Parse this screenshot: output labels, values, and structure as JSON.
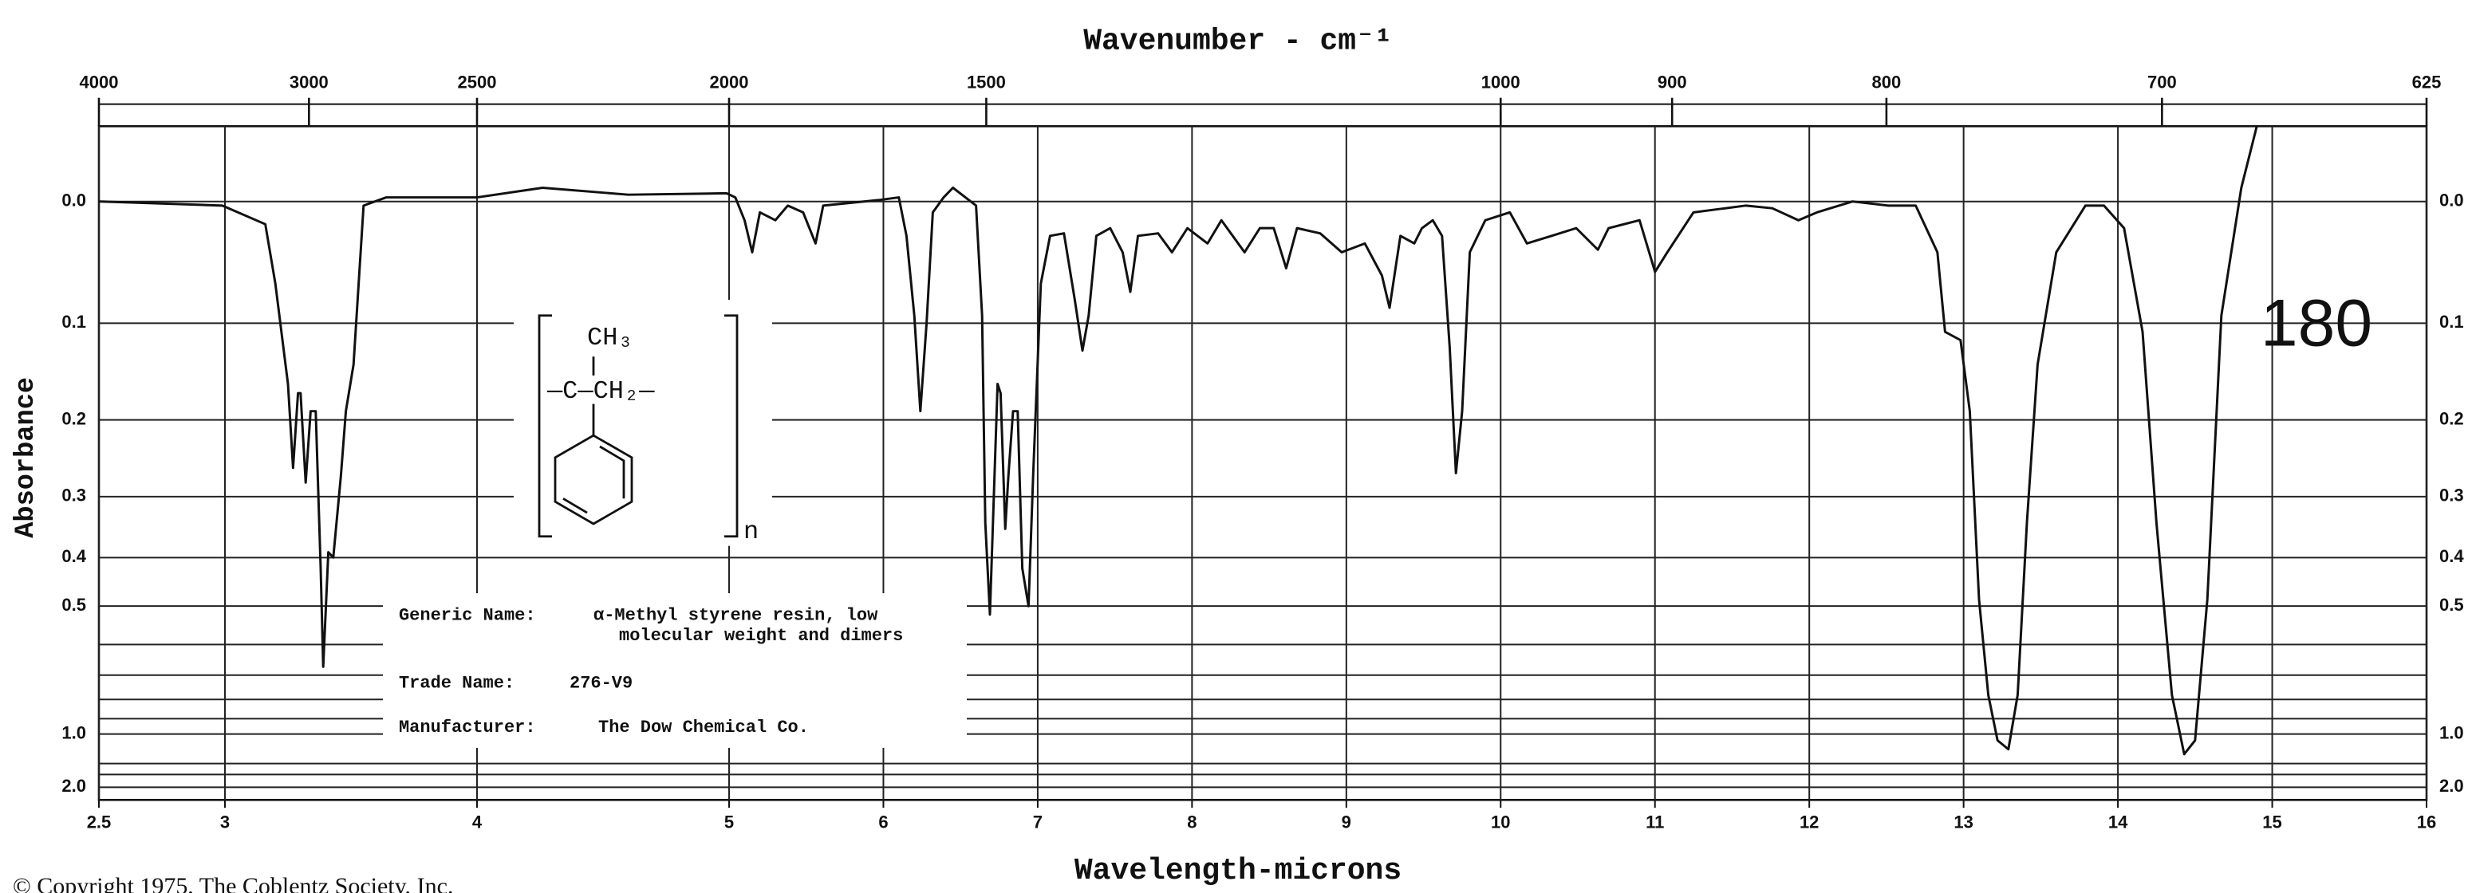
{
  "chart_data": {
    "type": "line",
    "title": "Wavenumber - cm⁻¹",
    "xlabel": "Wavelength-microns",
    "ylabel": "Absorbance",
    "annotation": "180",
    "copyright": "© Copyright 1975, The Coblentz Society, Inc.",
    "structure": {
      "top": "CH₃",
      "chain": "—C—CH₂—",
      "repeat": "n"
    },
    "info": {
      "generic_label": "Generic Name:",
      "generic_1": "α-Methyl styrene resin, low",
      "generic_2": "molecular weight and dimers",
      "trade_label": "Trade Name:",
      "trade": "276-V9",
      "maker_label": "Manufacturer:",
      "maker": "The Dow Chemical Co."
    },
    "color": "#111111",
    "xlim": [
      2.5,
      16
    ],
    "x_scale_break": 5,
    "xticks": [
      2.5,
      3,
      4,
      5,
      6,
      7,
      8,
      9,
      10,
      11,
      12,
      13,
      14,
      15,
      16
    ],
    "x2ticks": [
      4000,
      3000,
      2500,
      2000,
      1500,
      1000,
      900,
      800,
      700,
      625
    ],
    "ylim": [
      -0.052,
      2
    ],
    "yscale": "transmittance",
    "yticks": [
      {
        "value": 0,
        "label": "0.0"
      },
      0.1,
      0.2,
      0.3,
      0.4,
      0.5,
      {
        "value": 1,
        "label": "1.0"
      },
      {
        "value": 2,
        "label": "2.0"
      }
    ],
    "y_minor_ticks": [
      0.6,
      0.7,
      0.8,
      0.9,
      1.3,
      1.5
    ],
    "grid": true,
    "x": [
      2.5,
      2.99,
      3.16,
      3.2,
      3.25,
      3.27,
      3.29,
      3.3,
      3.32,
      3.34,
      3.36,
      3.38,
      3.39,
      3.41,
      3.43,
      3.46,
      3.48,
      3.51,
      3.55,
      3.64,
      4.0,
      4.26,
      4.6,
      4.99,
      5.04,
      5.1,
      5.15,
      5.2,
      5.3,
      5.38,
      5.48,
      5.56,
      5.61,
      5.97,
      6.1,
      6.15,
      6.2,
      6.24,
      6.28,
      6.32,
      6.39,
      6.45,
      6.6,
      6.64,
      6.66,
      6.69,
      6.71,
      6.74,
      6.76,
      6.79,
      6.81,
      6.84,
      6.87,
      6.9,
      6.94,
      6.97,
      7.02,
      7.08,
      7.17,
      7.24,
      7.29,
      7.33,
      7.38,
      7.47,
      7.55,
      7.6,
      7.65,
      7.78,
      7.87,
      7.97,
      8.1,
      8.19,
      8.34,
      8.44,
      8.53,
      8.61,
      8.68,
      8.83,
      8.97,
      9.12,
      9.23,
      9.28,
      9.35,
      9.44,
      9.49,
      9.56,
      9.62,
      9.67,
      9.71,
      9.75,
      9.8,
      9.9,
      10.06,
      10.17,
      10.33,
      10.49,
      10.63,
      10.7,
      10.9,
      11.0,
      11.08,
      11.25,
      11.59,
      11.76,
      11.93,
      12.05,
      12.28,
      12.51,
      12.69,
      12.83,
      12.88,
      12.98,
      13.04,
      13.1,
      13.16,
      13.22,
      13.29,
      13.35,
      13.41,
      13.48,
      13.6,
      13.79,
      13.91,
      14.04,
      14.16,
      14.25,
      14.35,
      14.43,
      14.5,
      14.58,
      14.67,
      14.8,
      14.9
    ],
    "values": [
      0,
      0.003,
      0.017,
      0.065,
      0.16,
      0.26,
      0.17,
      0.17,
      0.28,
      0.19,
      0.19,
      0.42,
      0.67,
      0.39,
      0.4,
      0.27,
      0.19,
      0.14,
      0.003,
      -0.003,
      -0.003,
      -0.01,
      -0.005,
      -0.006,
      -0.003,
      0.014,
      0.039,
      0.008,
      0.014,
      0.003,
      0.008,
      0.032,
      0.003,
      -0.001,
      -0.003,
      0.026,
      0.093,
      0.19,
      0.1,
      0.008,
      -0.003,
      -0.01,
      0.003,
      0.093,
      0.34,
      0.52,
      0.34,
      0.16,
      0.17,
      0.35,
      0.27,
      0.19,
      0.19,
      0.42,
      0.5,
      0.27,
      0.065,
      0.026,
      0.024,
      0.079,
      0.126,
      0.093,
      0.026,
      0.02,
      0.039,
      0.072,
      0.026,
      0.024,
      0.039,
      0.02,
      0.032,
      0.014,
      0.039,
      0.02,
      0.02,
      0.052,
      0.02,
      0.024,
      0.039,
      0.032,
      0.058,
      0.086,
      0.026,
      0.032,
      0.02,
      0.014,
      0.026,
      0.123,
      0.267,
      0.19,
      0.039,
      0.014,
      0.008,
      0.032,
      0.026,
      0.02,
      0.037,
      0.02,
      0.014,
      0.055,
      0.039,
      0.008,
      0.003,
      0.005,
      0.014,
      0.008,
      0,
      0.003,
      0.003,
      0.039,
      0.108,
      0.116,
      0.19,
      0.485,
      0.78,
      1.05,
      1.13,
      0.78,
      0.34,
      0.14,
      0.039,
      0.003,
      0.003,
      0.02,
      0.108,
      0.34,
      0.78,
      1.18,
      1.05,
      0.485,
      0.093,
      -0.01,
      -0.052
    ]
  }
}
